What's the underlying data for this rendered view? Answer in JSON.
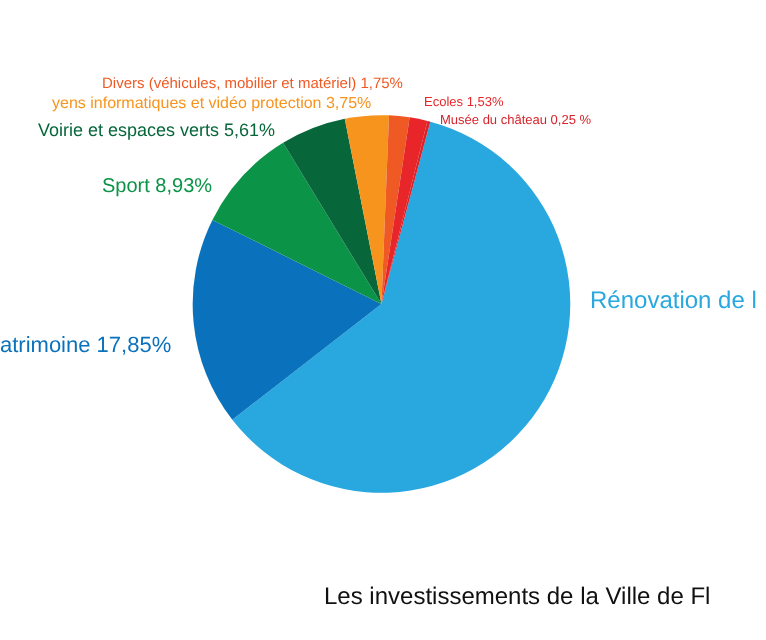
{
  "chart_data": {
    "type": "pie",
    "title": "Les investissements de la Ville de Fl",
    "categories": [
      "Rénovation de l",
      "atrimoine 17,85%",
      "Sport 8,93%",
      "Voirie et espaces verts 5,61%",
      "yens informatiques et vidéo protection 3,75%",
      "Divers (véhicules, mobilier et matériel) 1,75%",
      "Ecoles 1,53%",
      "Musée du château 0,25 %"
    ],
    "values": [
      60.33,
      17.85,
      8.93,
      5.61,
      3.75,
      1.75,
      1.53,
      0.25
    ],
    "colors": [
      "#29a8e0",
      "#0a72bc",
      "#0b9447",
      "#07673a",
      "#f7941d",
      "#ef5a24",
      "#e8262a",
      "#d8232a"
    ]
  }
}
